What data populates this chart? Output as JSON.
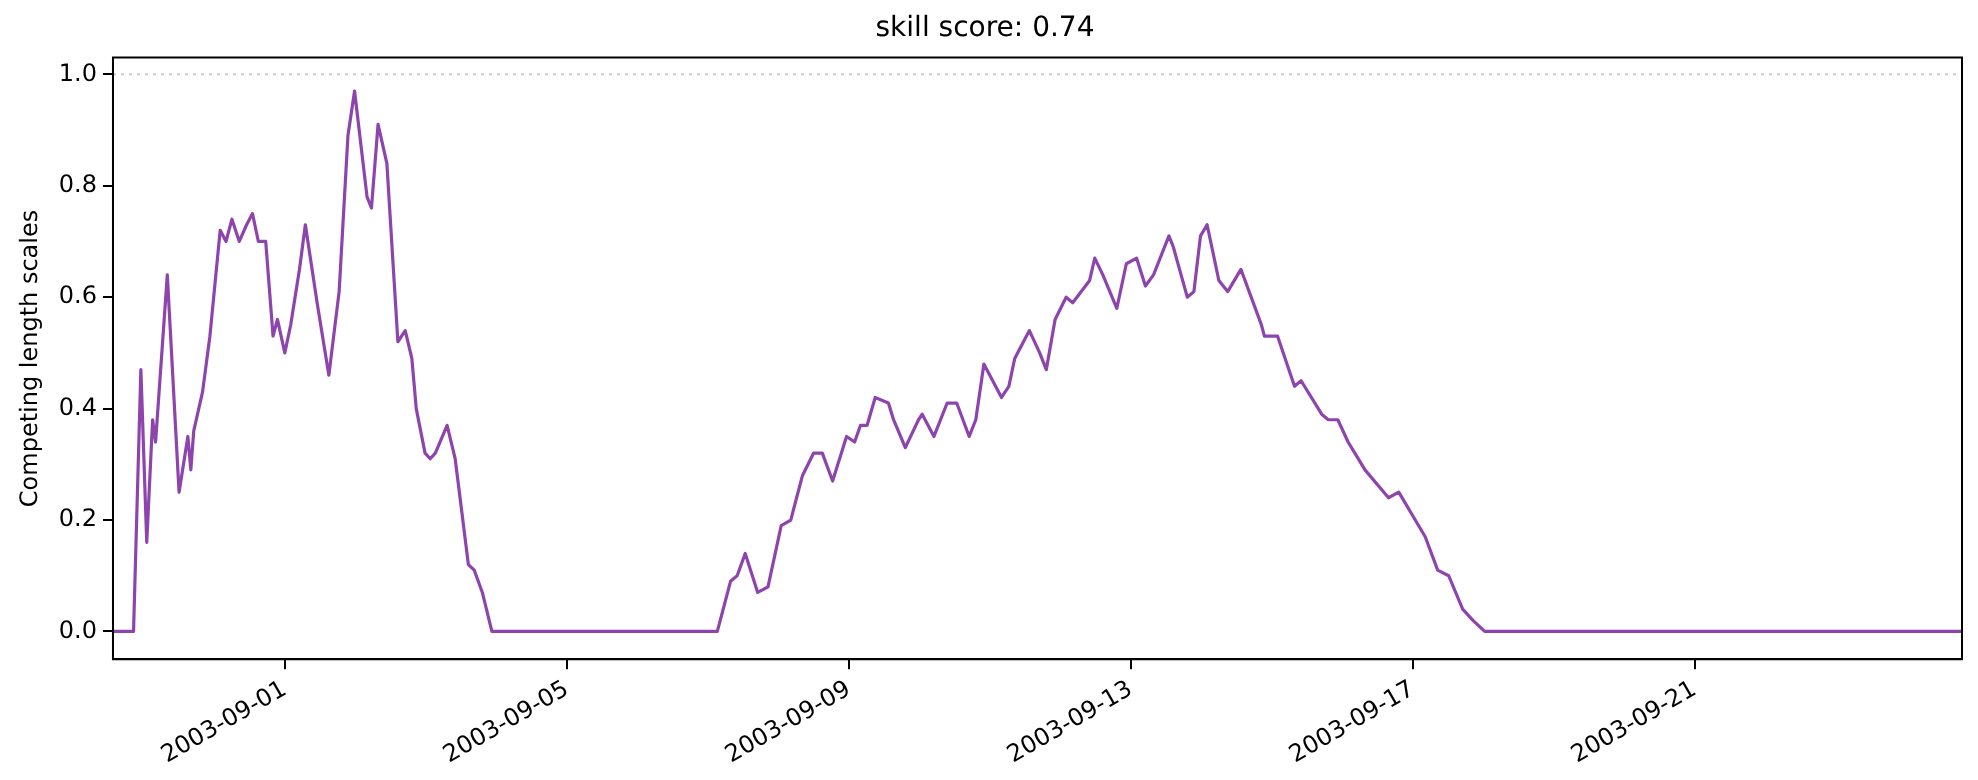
{
  "chart_data": {
    "type": "line",
    "title": "skill score: 0.74",
    "ylabel": "Competing length scales",
    "x": [
      "2003-08-29T13:30",
      "2003-08-29T20:30",
      "2003-08-29T23:00",
      "2003-08-30T01:00",
      "2003-08-30T03:00",
      "2003-08-30T04:00",
      "2003-08-30T08:00",
      "2003-08-30T12:00",
      "2003-08-30T15:00",
      "2003-08-30T16:00",
      "2003-08-30T17:00",
      "2003-08-30T20:00",
      "2003-08-30T22:30",
      "2003-08-31T02:00",
      "2003-08-31T04:00",
      "2003-08-31T06:00",
      "2003-08-31T08:30",
      "2003-08-31T11:00",
      "2003-08-31T13:00",
      "2003-08-31T15:00",
      "2003-08-31T17:30",
      "2003-08-31T20:00",
      "2003-08-31T21:30",
      "2003-09-01T00:00",
      "2003-09-01T02:00",
      "2003-09-01T05:00",
      "2003-09-01T07:00",
      "2003-09-01T11:00",
      "2003-09-01T15:00",
      "2003-09-01T18:30",
      "2003-09-01T21:30",
      "2003-09-01T23:45",
      "2003-09-02T04:00",
      "2003-09-02T05:30",
      "2003-09-02T07:45",
      "2003-09-02T10:45",
      "2003-09-02T14:30",
      "2003-09-02T17:00",
      "2003-09-02T19:15",
      "2003-09-02T20:45",
      "2003-09-02T23:45",
      "2003-09-03T01:30",
      "2003-09-03T03:15",
      "2003-09-03T07:15",
      "2003-09-03T10:00",
      "2003-09-03T14:30",
      "2003-09-03T16:30",
      "2003-09-03T19:15",
      "2003-09-03T22:30",
      "2003-09-07T03:15",
      "2003-09-07T07:45",
      "2003-09-07T10:00",
      "2003-09-07T12:45",
      "2003-09-07T17:00",
      "2003-09-07T20:30",
      "2003-09-08T01:00",
      "2003-09-08T04:15",
      "2003-09-08T08:15",
      "2003-09-08T12:00",
      "2003-09-08T15:00",
      "2003-09-08T18:30",
      "2003-09-08T23:15",
      "2003-09-09T02:00",
      "2003-09-09T04:00",
      "2003-09-09T06:15",
      "2003-09-09T09:00",
      "2003-09-09T13:30",
      "2003-09-09T15:15",
      "2003-09-09T19:15",
      "2003-09-09T23:45",
      "2003-09-10T01:00",
      "2003-09-10T05:00",
      "2003-09-10T09:30",
      "2003-09-10T12:45",
      "2003-09-10T17:00",
      "2003-09-10T19:15",
      "2003-09-10T22:00",
      "2003-09-11T04:00",
      "2003-09-11T06:30",
      "2003-09-11T08:30",
      "2003-09-11T13:30",
      "2003-09-11T17:00",
      "2003-09-11T19:15",
      "2003-09-11T22:15",
      "2003-09-12T02:00",
      "2003-09-12T04:15",
      "2003-09-12T10:00",
      "2003-09-12T11:45",
      "2003-09-12T14:30",
      "2003-09-12T19:15",
      "2003-09-12T22:30",
      "2003-09-13T02:00",
      "2003-09-13T05:00",
      "2003-09-13T07:45",
      "2003-09-13T13:00",
      "2003-09-13T14:30",
      "2003-09-13T19:15",
      "2003-09-13T21:30",
      "2003-09-13T23:45",
      "2003-09-14T02:00",
      "2003-09-14T06:00",
      "2003-09-14T09:00",
      "2003-09-14T13:30",
      "2003-09-14T17:00",
      "2003-09-14T20:30",
      "2003-09-14T21:30",
      "2003-09-15T02:00",
      "2003-09-15T07:45",
      "2003-09-15T10:00",
      "2003-09-15T17:00",
      "2003-09-15T19:15",
      "2003-09-15T22:30",
      "2003-09-16T02:00",
      "2003-09-16T07:45",
      "2003-09-16T15:45",
      "2003-09-16T19:15",
      "2003-09-16T23:45",
      "2003-09-17T04:15",
      "2003-09-17T08:30",
      "2003-09-17T12:15",
      "2003-09-17T17:00",
      "2003-09-17T20:30",
      "2003-09-18T00:30",
      "2003-09-24T19:00"
    ],
    "series": [
      {
        "color": "#8e44ad",
        "values": [
          0,
          0,
          0.47,
          0.16,
          0.38,
          0.34,
          0.64,
          0.25,
          0.35,
          0.29,
          0.36,
          0.43,
          0.53,
          0.72,
          0.7,
          0.74,
          0.7,
          0.73,
          0.75,
          0.7,
          0.7,
          0.53,
          0.56,
          0.5,
          0.55,
          0.65,
          0.73,
          0.59,
          0.46,
          0.61,
          0.89,
          0.97,
          0.78,
          0.76,
          0.91,
          0.84,
          0.52,
          0.54,
          0.49,
          0.4,
          0.32,
          0.31,
          0.32,
          0.37,
          0.31,
          0.12,
          0.11,
          0.07,
          0,
          0,
          0.09,
          0.1,
          0.14,
          0.07,
          0.08,
          0.19,
          0.2,
          0.28,
          0.32,
          0.32,
          0.27,
          0.35,
          0.34,
          0.37,
          0.37,
          0.42,
          0.41,
          0.38,
          0.33,
          0.38,
          0.39,
          0.35,
          0.41,
          0.41,
          0.35,
          0.38,
          0.48,
          0.42,
          0.44,
          0.49,
          0.54,
          0.5,
          0.47,
          0.56,
          0.6,
          0.59,
          0.63,
          0.67,
          0.64,
          0.58,
          0.66,
          0.67,
          0.62,
          0.64,
          0.71,
          0.69,
          0.6,
          0.61,
          0.71,
          0.73,
          0.63,
          0.61,
          0.65,
          0.6,
          0.55,
          0.53,
          0.53,
          0.44,
          0.45,
          0.39,
          0.38,
          0.38,
          0.34,
          0.29,
          0.24,
          0.25,
          0.21,
          0.17,
          0.11,
          0.1,
          0.04,
          0.02,
          0,
          0
        ]
      }
    ],
    "xlim": [
      "2003-08-29T13:30",
      "2003-09-24T19:00"
    ],
    "xticks": [
      "2003-09-01",
      "2003-09-05",
      "2003-09-09",
      "2003-09-13",
      "2003-09-17",
      "2003-09-21"
    ],
    "ylim": [
      -0.05,
      1.03
    ],
    "yticks": [
      {
        "value": 0,
        "label": "0.0"
      },
      {
        "value": 0.2,
        "label": "0.2"
      },
      {
        "value": 0.4,
        "label": "0.4"
      },
      {
        "value": 0.6,
        "label": "0.6"
      },
      {
        "value": 0.8,
        "label": "0.8"
      },
      {
        "value": 1,
        "label": "1.0"
      }
    ],
    "ref_lines": [
      {
        "axis": "y",
        "value": 1,
        "color": "#cccccc",
        "line_style": "dotted"
      }
    ],
    "grid": false,
    "legend": false,
    "marker": "none",
    "line_style": "solid"
  }
}
